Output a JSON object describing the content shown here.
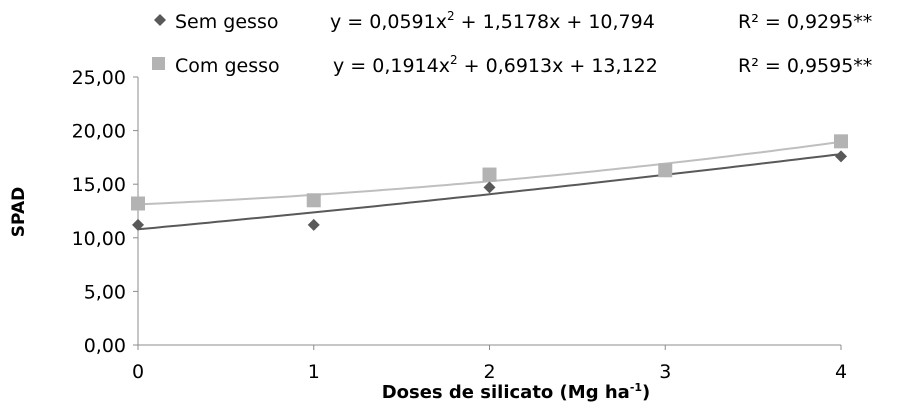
{
  "chart_data": {
    "type": "scatter",
    "xlabel": "Doses de silicato (Mg ha",
    "xlabel_sup": "-1",
    "xlabel_close": ")",
    "ylabel": "SPAD",
    "xlim": [
      0,
      4
    ],
    "ylim": [
      0,
      25
    ],
    "x_ticks": [
      "0",
      "1",
      "2",
      "3",
      "4"
    ],
    "y_ticks": [
      "0,00",
      "5,00",
      "10,00",
      "15,00",
      "20,00",
      "25,00"
    ],
    "grid": false,
    "legend_position": "top",
    "series": [
      {
        "name": "Sem gesso",
        "marker": "diamond",
        "color": "#595959",
        "line_color": "#595959",
        "x": [
          0,
          1,
          2,
          3,
          4
        ],
        "y": [
          11.2,
          11.2,
          14.7,
          16.2,
          17.6
        ],
        "equation": "y = 0,0591x",
        "equation_exp": "2",
        "equation_rest": " + 1,5178x + 10,794",
        "r2": "R² = 0,9295**",
        "coefficients": [
          0.0591,
          1.5178,
          10.794
        ]
      },
      {
        "name": "Com gesso",
        "marker": "square",
        "color": "#b3b3b3",
        "line_color": "#bfbfbf",
        "x": [
          0,
          1,
          2,
          3,
          4
        ],
        "y": [
          13.2,
          13.5,
          15.9,
          16.3,
          19.0
        ],
        "equation": "y = 0,1914x",
        "equation_exp": "2",
        "equation_rest": " + 0,6913x + 13,122",
        "r2": "R² = 0,9595**",
        "coefficients": [
          0.1914,
          0.6913,
          13.122
        ]
      }
    ]
  }
}
